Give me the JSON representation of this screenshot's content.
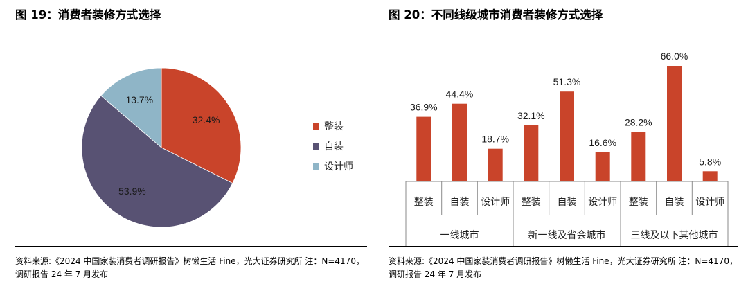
{
  "figure_left": {
    "title": "图 19：消费者装修方式选择",
    "source_lines": [
      "资料来源:《2024 中国家装消费者调研报告》树懒生活 Fine，光大证券研究所  注：N=4170，",
      "调研报告 24 年 7 月发布"
    ]
  },
  "figure_right": {
    "title": "图 20：不同线级城市消费者装修方式选择",
    "source_lines": [
      "资料来源:《2024 中国家装消费者调研报告》树懒生活 Fine，光大证券研究所  注：N=4170，",
      "调研报告 24 年 7 月发布"
    ]
  },
  "chart_data": [
    {
      "type": "pie",
      "title": "",
      "slices": [
        {
          "label": "整装",
          "value": 32.4,
          "display": "32.4%",
          "color": "#c9442a"
        },
        {
          "label": "自装",
          "value": 53.9,
          "display": "53.9%",
          "color": "#585273"
        },
        {
          "label": "设计师",
          "value": 13.7,
          "display": "13.7%",
          "color": "#8fb5c7"
        }
      ],
      "legend_position": "right"
    },
    {
      "type": "bar",
      "title": "",
      "groups": [
        "一线城市",
        "新一线及省会城市",
        "三线及以下其他城市"
      ],
      "categories": [
        "整装",
        "自装",
        "设计师"
      ],
      "values": [
        [
          36.9,
          44.4,
          18.7
        ],
        [
          32.1,
          51.3,
          16.6
        ],
        [
          28.2,
          66.0,
          5.8
        ]
      ],
      "value_labels": [
        [
          "36.9%",
          "44.4%",
          "18.7%"
        ],
        [
          "32.1%",
          "51.3%",
          "16.6%"
        ],
        [
          "28.2%",
          "66.0%",
          "5.8%"
        ]
      ],
      "ylim": [
        0,
        70
      ],
      "bar_color": "#c9442a",
      "grid": false,
      "legend": false
    }
  ]
}
